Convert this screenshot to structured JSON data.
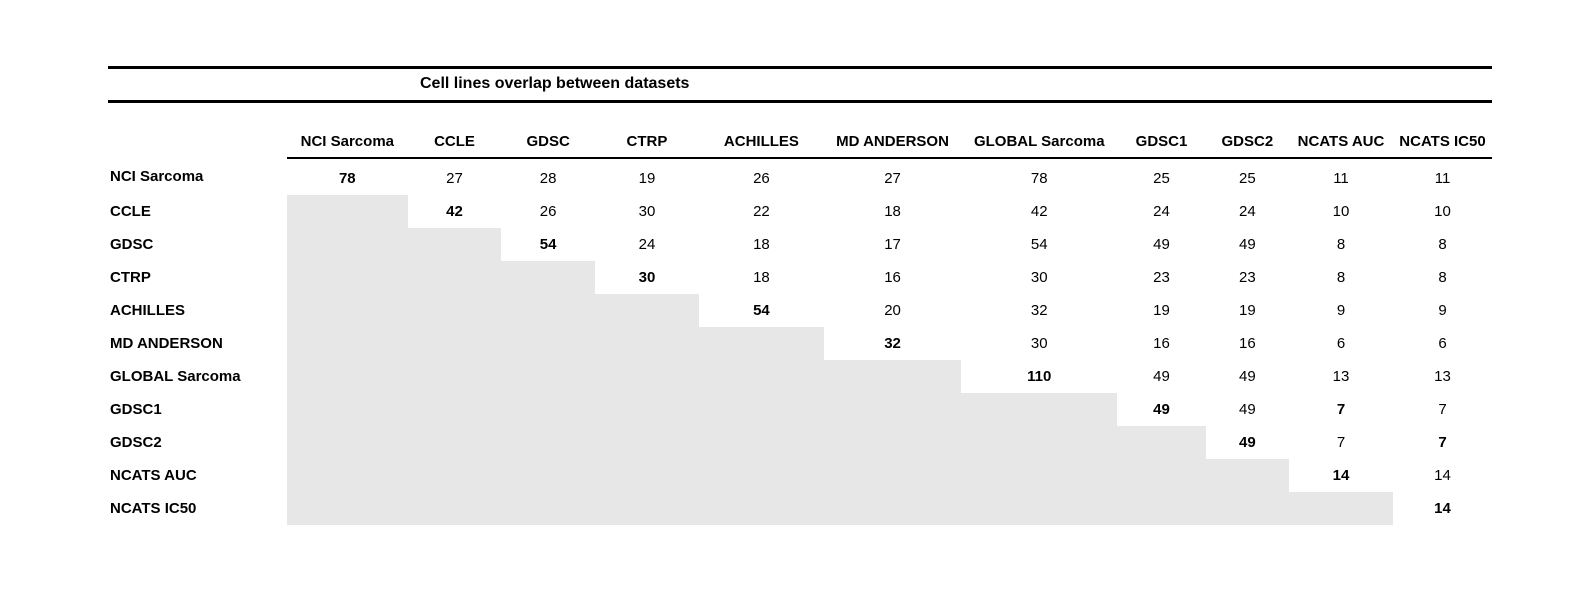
{
  "colors": {
    "shaded_lower_triangle": "#e7e7e7",
    "rule_line": "#000000"
  },
  "chart_data": {
    "type": "table",
    "title": "Cell lines overlap between datasets",
    "columns": [
      "NCI Sarcoma",
      "CCLE",
      "GDSC",
      "CTRP",
      "ACHILLES",
      "MD ANDERSON",
      "GLOBAL Sarcoma",
      "GDSC1",
      "GDSC2",
      "NCATS AUC",
      "NCATS IC50"
    ],
    "rows": [
      {
        "label": "NCI Sarcoma",
        "values": [
          78,
          27,
          28,
          19,
          26,
          27,
          78,
          25,
          25,
          11,
          11
        ]
      },
      {
        "label": "CCLE",
        "values": [
          null,
          42,
          26,
          30,
          22,
          18,
          42,
          24,
          24,
          10,
          10
        ]
      },
      {
        "label": "GDSC",
        "values": [
          null,
          null,
          54,
          24,
          18,
          17,
          54,
          49,
          49,
          8,
          8
        ]
      },
      {
        "label": "CTRP",
        "values": [
          null,
          null,
          null,
          30,
          18,
          16,
          30,
          23,
          23,
          8,
          8
        ]
      },
      {
        "label": "ACHILLES",
        "values": [
          null,
          null,
          null,
          null,
          54,
          20,
          32,
          19,
          19,
          9,
          9
        ]
      },
      {
        "label": "MD ANDERSON",
        "values": [
          null,
          null,
          null,
          null,
          null,
          32,
          30,
          16,
          16,
          6,
          6
        ]
      },
      {
        "label": "GLOBAL Sarcoma",
        "values": [
          null,
          null,
          null,
          null,
          null,
          null,
          110,
          49,
          49,
          13,
          13
        ]
      },
      {
        "label": "GDSC1",
        "values": [
          null,
          null,
          null,
          null,
          null,
          null,
          null,
          49,
          49,
          7,
          7
        ]
      },
      {
        "label": "GDSC2",
        "values": [
          null,
          null,
          null,
          null,
          null,
          null,
          null,
          null,
          49,
          7,
          7
        ]
      },
      {
        "label": "NCATS AUC",
        "values": [
          null,
          null,
          null,
          null,
          null,
          null,
          null,
          null,
          null,
          14,
          14
        ]
      },
      {
        "label": "NCATS IC50",
        "values": [
          null,
          null,
          null,
          null,
          null,
          null,
          null,
          null,
          null,
          null,
          14
        ]
      }
    ],
    "bold_cells": [
      [
        7,
        9
      ],
      [
        8,
        10
      ]
    ],
    "layout": {
      "diagonal_bold": true,
      "lower_triangle_shaded_empty": true
    }
  }
}
